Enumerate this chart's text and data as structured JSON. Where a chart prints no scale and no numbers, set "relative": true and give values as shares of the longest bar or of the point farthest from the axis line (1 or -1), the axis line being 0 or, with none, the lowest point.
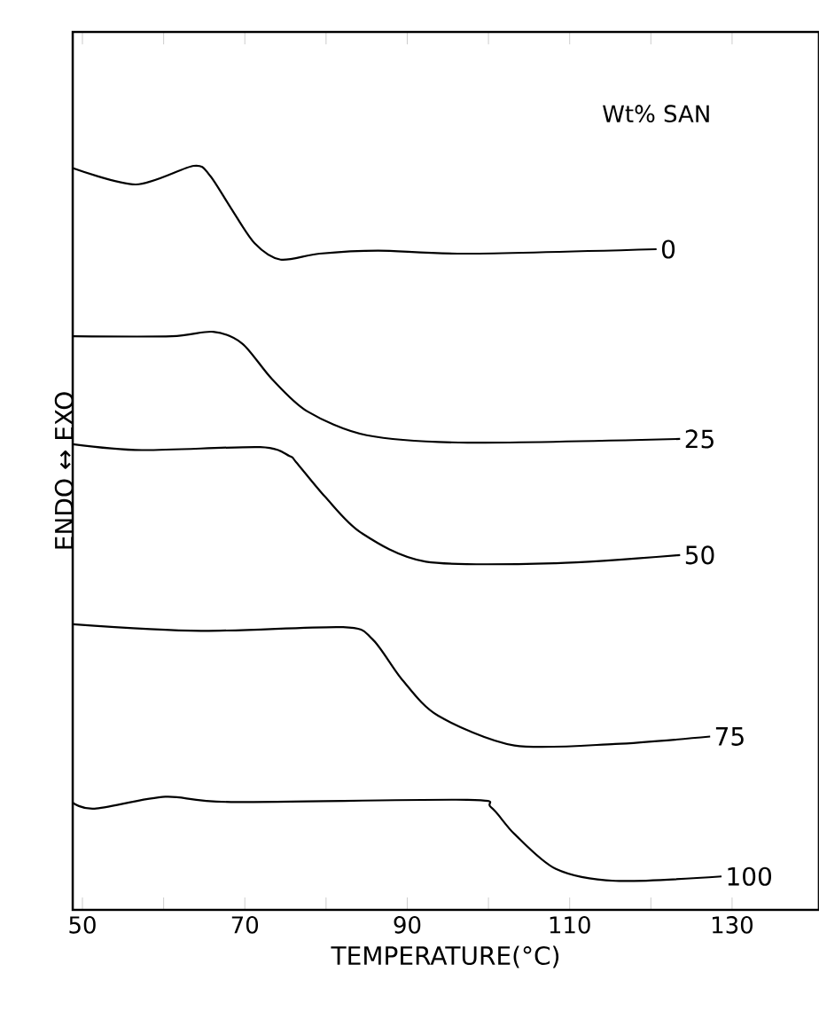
{
  "chart_data": {
    "type": "line",
    "relative": true,
    "xlabel": "TEMPERATURE(°C)",
    "ylabel": "ENDO ↔ EXO",
    "legend_title": "Wt% SAN",
    "xlim": [
      48.8,
      140.7
    ],
    "xticks": [
      50,
      {
        "value": 60,
        "label": null
      },
      70,
      {
        "value": 80,
        "label": null
      },
      90,
      {
        "value": 100,
        "label": null
      },
      110,
      {
        "value": 120,
        "label": null
      },
      130
    ],
    "marker": "none",
    "line_style": "solid",
    "legend": false,
    "grid": false,
    "series": [
      {
        "name": "0",
        "color": "#000000",
        "x": [
          48.8,
          56.6,
          63.7,
          65.7,
          68.3,
          71.2,
          74.4,
          79.2,
          86.4,
          97.4,
          120.7
        ],
        "values": [
          0.997,
          0.975,
          1.0,
          0.987,
          0.943,
          0.896,
          0.874,
          0.882,
          0.886,
          0.882,
          0.888
        ]
      },
      {
        "name": "25",
        "color": "#000000",
        "x": [
          48.8,
          61.0,
          66.1,
          69.7,
          73.3,
          77.7,
          85.0,
          97.4,
          123.6
        ],
        "values": [
          0.771,
          0.771,
          0.777,
          0.761,
          0.714,
          0.67,
          0.638,
          0.628,
          0.633
        ]
      },
      {
        "name": "50",
        "color": "#000000",
        "x": [
          48.8,
          57.3,
          71.9,
          75.5,
          76.3,
          79.9,
          84.3,
          92.3,
          108.3,
          123.6
        ],
        "values": [
          0.626,
          0.618,
          0.622,
          0.61,
          0.602,
          0.555,
          0.507,
          0.468,
          0.466,
          0.477
        ]
      },
      {
        "name": "75",
        "color": "#000000",
        "x": [
          48.8,
          64.6,
          82.1,
          85.7,
          89.4,
          93.8,
          103.2,
          115.6,
          127.3
        ],
        "values": [
          0.384,
          0.375,
          0.38,
          0.364,
          0.309,
          0.261,
          0.221,
          0.223,
          0.233
        ]
      },
      {
        "name": "100",
        "color": "#000000",
        "x": [
          48.8,
          51.5,
          60.2,
          68.3,
          97.4,
          100.3,
          103.2,
          108.3,
          115.6,
          128.7
        ],
        "values": [
          0.144,
          0.136,
          0.152,
          0.145,
          0.148,
          0.138,
          0.102,
          0.055,
          0.039,
          0.045
        ]
      }
    ]
  }
}
